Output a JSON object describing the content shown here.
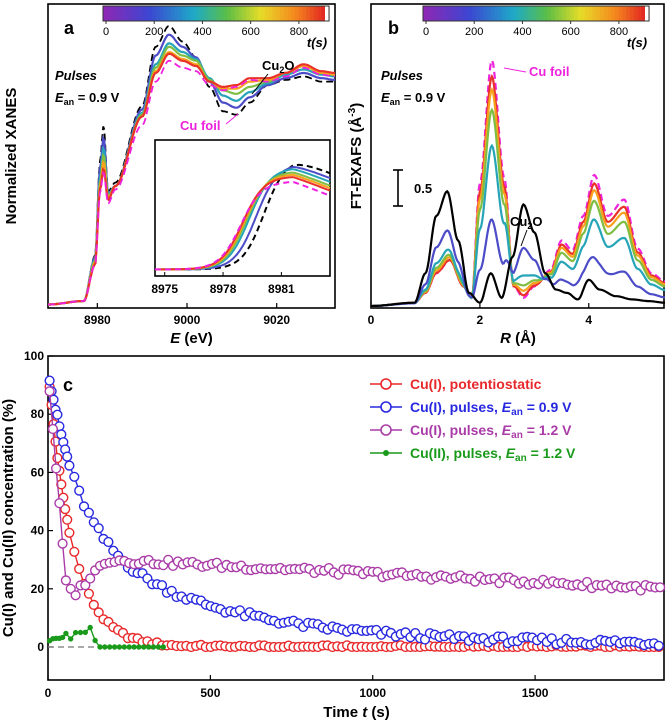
{
  "chart_data": [
    {
      "type": "line",
      "panel_label": "a",
      "xlabel": "E",
      "xlabel_unit": " (eV)",
      "ylabel": "Normalized XANES",
      "xlim": [
        8969,
        9033
      ],
      "xticks": [
        8980,
        9000,
        9020
      ],
      "ylim": [
        0,
        1.7
      ],
      "annotations": {
        "pulses": "Pulses",
        "ean_prefix": "E",
        "ean_sub": "an",
        "ean_value": " = 0.9 V",
        "cu2o": "Cu",
        "cu2o_sub": "2",
        "cu2o_tail": "O",
        "cufoil": "Cu foil"
      },
      "colorbar": {
        "ticks": [
          0,
          200,
          400,
          600,
          800
        ],
        "label": "t(s)",
        "range": [
          0,
          900
        ]
      },
      "series": [
        {
          "name": "Cu foil",
          "style": "dash",
          "color": "#ee22dd",
          "points": [
            [
              8969,
              0.02
            ],
            [
              8977,
              0.04
            ],
            [
              8979.5,
              0.25
            ],
            [
              8980.6,
              0.66
            ],
            [
              8981.4,
              0.78
            ],
            [
              8982.4,
              0.6
            ],
            [
              8984,
              0.68
            ],
            [
              8990,
              1.05
            ],
            [
              8993,
              1.3
            ],
            [
              8996,
              1.42
            ],
            [
              8999,
              1.38
            ],
            [
              9002,
              1.36
            ],
            [
              9005,
              1.28
            ],
            [
              9008,
              1.25
            ],
            [
              9011,
              1.27
            ],
            [
              9014,
              1.31
            ],
            [
              9018,
              1.3
            ],
            [
              9022,
              1.33
            ],
            [
              9026,
              1.38
            ],
            [
              9030,
              1.34
            ],
            [
              9033,
              1.33
            ]
          ]
        },
        {
          "name": "t=900",
          "style": "solid",
          "color": "#e8322a",
          "points": [
            [
              8969,
              0.02
            ],
            [
              8977,
              0.04
            ],
            [
              8979.5,
              0.25
            ],
            [
              8980.6,
              0.68
            ],
            [
              8981.4,
              0.8
            ],
            [
              8982.4,
              0.62
            ],
            [
              8984,
              0.7
            ],
            [
              8990,
              1.1
            ],
            [
              8993,
              1.35
            ],
            [
              8996,
              1.46
            ],
            [
              8999,
              1.42
            ],
            [
              9002,
              1.39
            ],
            [
              9005,
              1.3
            ],
            [
              9008,
              1.27
            ],
            [
              9011,
              1.28
            ],
            [
              9014,
              1.32
            ],
            [
              9018,
              1.32
            ],
            [
              9022,
              1.35
            ],
            [
              9026,
              1.4
            ],
            [
              9030,
              1.36
            ],
            [
              9033,
              1.35
            ]
          ]
        },
        {
          "name": "t=650",
          "style": "solid",
          "color": "#f7a21c",
          "points": [
            [
              8969,
              0.02
            ],
            [
              8977,
              0.04
            ],
            [
              8979.5,
              0.26
            ],
            [
              8980.6,
              0.7
            ],
            [
              8981.4,
              0.84
            ],
            [
              8982.4,
              0.63
            ],
            [
              8984,
              0.7
            ],
            [
              8990,
              1.1
            ],
            [
              8993,
              1.36
            ],
            [
              8996,
              1.47
            ],
            [
              8999,
              1.43
            ],
            [
              9002,
              1.4
            ],
            [
              9005,
              1.3
            ],
            [
              9008,
              1.26
            ],
            [
              9011,
              1.26
            ],
            [
              9014,
              1.3
            ],
            [
              9018,
              1.31
            ],
            [
              9022,
              1.35
            ],
            [
              9026,
              1.39
            ],
            [
              9030,
              1.35
            ],
            [
              9033,
              1.34
            ]
          ]
        },
        {
          "name": "t=450",
          "style": "solid",
          "color": "#7fbe42",
          "points": [
            [
              8969,
              0.02
            ],
            [
              8977,
              0.04
            ],
            [
              8979.5,
              0.27
            ],
            [
              8980.6,
              0.72
            ],
            [
              8981.4,
              0.88
            ],
            [
              8982.4,
              0.64
            ],
            [
              8984,
              0.7
            ],
            [
              8990,
              1.11
            ],
            [
              8993,
              1.38
            ],
            [
              8996,
              1.5
            ],
            [
              8999,
              1.45
            ],
            [
              9002,
              1.42
            ],
            [
              9005,
              1.31
            ],
            [
              9008,
              1.25
            ],
            [
              9011,
              1.23
            ],
            [
              9014,
              1.27
            ],
            [
              9018,
              1.3
            ],
            [
              9022,
              1.35
            ],
            [
              9026,
              1.39
            ],
            [
              9030,
              1.35
            ],
            [
              9033,
              1.34
            ]
          ]
        },
        {
          "name": "t=250",
          "style": "solid",
          "color": "#26a4b8",
          "points": [
            [
              8969,
              0.02
            ],
            [
              8977,
              0.04
            ],
            [
              8979.5,
              0.28
            ],
            [
              8980.6,
              0.75
            ],
            [
              8981.4,
              0.92
            ],
            [
              8982.4,
              0.65
            ],
            [
              8984,
              0.7
            ],
            [
              8990,
              1.12
            ],
            [
              8993,
              1.4
            ],
            [
              8996,
              1.52
            ],
            [
              8999,
              1.47
            ],
            [
              9002,
              1.43
            ],
            [
              9005,
              1.32
            ],
            [
              9008,
              1.22
            ],
            [
              9011,
              1.19
            ],
            [
              9014,
              1.24
            ],
            [
              9018,
              1.29
            ],
            [
              9022,
              1.34
            ],
            [
              9026,
              1.37
            ],
            [
              9030,
              1.34
            ],
            [
              9033,
              1.33
            ]
          ]
        },
        {
          "name": "t=100",
          "style": "solid",
          "color": "#4d4cc8",
          "points": [
            [
              8969,
              0.02
            ],
            [
              8977,
              0.04
            ],
            [
              8979.5,
              0.29
            ],
            [
              8980.6,
              0.8
            ],
            [
              8981.4,
              0.98
            ],
            [
              8982.4,
              0.66
            ],
            [
              8984,
              0.7
            ],
            [
              8990,
              1.14
            ],
            [
              8993,
              1.45
            ],
            [
              8996,
              1.57
            ],
            [
              8999,
              1.5
            ],
            [
              9002,
              1.44
            ],
            [
              9005,
              1.3
            ],
            [
              9008,
              1.18
            ],
            [
              9011,
              1.15
            ],
            [
              9014,
              1.21
            ],
            [
              9018,
              1.28
            ],
            [
              9022,
              1.32
            ],
            [
              9026,
              1.35
            ],
            [
              9030,
              1.32
            ],
            [
              9033,
              1.31
            ]
          ]
        },
        {
          "name": "Cu2O",
          "style": "dash",
          "color": "#000000",
          "points": [
            [
              8969,
              0.02
            ],
            [
              8977,
              0.04
            ],
            [
              8979.5,
              0.3
            ],
            [
              8980.6,
              0.84
            ],
            [
              8981.4,
              1.05
            ],
            [
              8982.4,
              0.67
            ],
            [
              8984,
              0.72
            ],
            [
              8990,
              1.16
            ],
            [
              8993,
              1.5
            ],
            [
              8996,
              1.62
            ],
            [
              8999,
              1.53
            ],
            [
              9002,
              1.44
            ],
            [
              9005,
              1.27
            ],
            [
              9008,
              1.13
            ],
            [
              9011,
              1.11
            ],
            [
              9014,
              1.18
            ],
            [
              9018,
              1.28
            ],
            [
              9022,
              1.31
            ],
            [
              9026,
              1.33
            ],
            [
              9030,
              1.3
            ],
            [
              9033,
              1.3
            ]
          ]
        }
      ],
      "inset": {
        "xlim": [
          8974.5,
          8983.5
        ],
        "xticks": [
          8975,
          8978,
          8981
        ],
        "ylim": [
          0,
          1
        ],
        "series": [
          {
            "name": "Cu foil",
            "color": "#ee22dd",
            "style": "dash",
            "mid": 8978.9,
            "top": 0.72
          },
          {
            "name": "t=900",
            "color": "#e8322a",
            "style": "solid",
            "mid": 8979.0,
            "top": 0.76
          },
          {
            "name": "t=650",
            "color": "#f7a21c",
            "style": "solid",
            "mid": 8979.1,
            "top": 0.78
          },
          {
            "name": "t=450",
            "color": "#7fbe42",
            "style": "solid",
            "mid": 8979.2,
            "top": 0.8
          },
          {
            "name": "t=250",
            "color": "#26a4b8",
            "style": "solid",
            "mid": 8979.35,
            "top": 0.83
          },
          {
            "name": "t=100",
            "color": "#4d4cc8",
            "style": "solid",
            "mid": 8979.7,
            "top": 0.86
          },
          {
            "name": "Cu2O",
            "color": "#000000",
            "style": "dash",
            "mid": 8980.1,
            "top": 0.9
          }
        ]
      }
    },
    {
      "type": "line",
      "panel_label": "b",
      "xlabel": "R",
      "xlabel_unit": " (Å)",
      "ylabel": "FT-EXAFS (Å",
      "ylabel_sup": "-3",
      "ylabel_tail": ")",
      "xlim": [
        0,
        5.4
      ],
      "xticks": [
        0,
        2,
        4
      ],
      "ylim": [
        0,
        1.6
      ],
      "annotations": {
        "pulses": "Pulses",
        "ean_prefix": "E",
        "ean_sub": "an",
        "ean_value": " = 0.9 V",
        "cu2o": "Cu",
        "cu2o_sub": "2",
        "cu2o_tail": "O",
        "cufoil": "Cu foil",
        "scalebar": "0.5"
      },
      "colorbar": {
        "ticks": [
          0,
          200,
          400,
          600,
          800
        ],
        "label": "t(s)",
        "range": [
          0,
          900
        ]
      },
      "series": [
        {
          "name": "Cu foil",
          "style": "dash",
          "color": "#ee22dd",
          "scale": 1.0,
          "cu2o": 0.0
        },
        {
          "name": "t=900",
          "style": "solid",
          "color": "#e8322a",
          "scale": 0.93,
          "cu2o": 0.03
        },
        {
          "name": "t=650",
          "style": "solid",
          "color": "#f7a21c",
          "scale": 0.87,
          "cu2o": 0.08
        },
        {
          "name": "t=450",
          "style": "solid",
          "color": "#7fbe42",
          "scale": 0.78,
          "cu2o": 0.14
        },
        {
          "name": "t=250",
          "style": "solid",
          "color": "#26a4b8",
          "scale": 0.62,
          "cu2o": 0.25
        },
        {
          "name": "t=100",
          "style": "solid",
          "color": "#4d4cc8",
          "scale": 0.28,
          "cu2o": 0.55
        },
        {
          "name": "Cu2O",
          "style": "solid",
          "color": "#000000",
          "scale": 0.0,
          "cu2o": 1.0
        }
      ]
    },
    {
      "type": "line",
      "panel_label": "c",
      "xlabel": "Time ",
      "xlabel_var": "t",
      "xlabel_unit": " (s)",
      "ylabel": "Cu(I) and Cu(II) concentration (%)",
      "xlim": [
        0,
        1900
      ],
      "ylim": [
        -10,
        100
      ],
      "xticks": [
        0,
        500,
        1000,
        1500
      ],
      "yticks": [
        0,
        20,
        40,
        60,
        80,
        100
      ],
      "legend_position": "top-right",
      "series": [
        {
          "name": "Cu(I), potentiostatic",
          "color": "#e8282a",
          "marker": "open-circle",
          "model": "exp",
          "a": 96,
          "tau": 75,
          "base": 0,
          "noise": 0.6
        },
        {
          "name": "Cu(I), pulses, ",
          "name_sub": "an",
          "name_tail": " = 0.9 V",
          "color": "#2828e0",
          "marker": "open-circle",
          "model": "exp2",
          "a": 96,
          "tau": 190,
          "base": 1,
          "noise": 1.2
        },
        {
          "name": "Cu(I), pulses, ",
          "name_sub": "an",
          "name_tail": " = 1.2 V",
          "color": "#aa3ca8",
          "marker": "open-circle",
          "model": "dip",
          "noise": 1.1
        },
        {
          "name": "Cu(II), pulses, ",
          "name_sub": "an",
          "name_tail": " = 1.2 V",
          "color": "#1a9a1a",
          "marker": "filled-dot",
          "model": "cu2",
          "noise": 0.0
        }
      ]
    }
  ]
}
